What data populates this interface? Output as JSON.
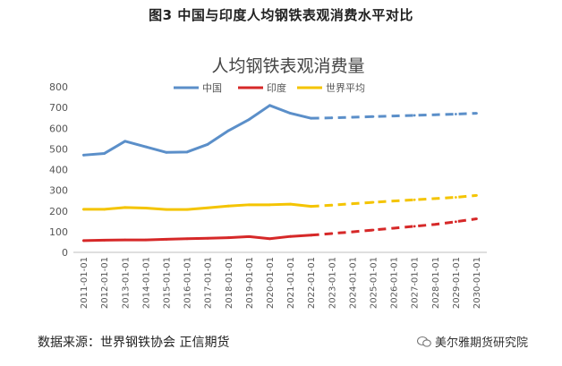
{
  "figure_title": "图3 中国与印度人均钢铁表观消费水平对比",
  "source_text": "数据来源：世界钢铁协会 正信期货",
  "watermark_text": "美尔雅期货研究院",
  "chart_data": {
    "type": "line",
    "title": "人均钢铁表观消费量",
    "ylim": [
      0,
      800
    ],
    "yticks": [
      0,
      100,
      200,
      300,
      400,
      500,
      600,
      700,
      800
    ],
    "grid": false,
    "legend_position": "top",
    "categories": [
      "2011-01-01",
      "2012-01-01",
      "2013-01-01",
      "2014-01-01",
      "2015-01-01",
      "2016-01-01",
      "2017-01-01",
      "2018-01-01",
      "2019-01-01",
      "2020-01-01",
      "2021-01-01",
      "2022-01-01",
      "2023-01-01",
      "2024-01-01",
      "2025-01-01",
      "2026-01-01",
      "2027-01-01",
      "2028-01-01",
      "2029-01-01",
      "2030-01-01"
    ],
    "last_actual_category": "2022-01-01",
    "series": [
      {
        "name": "中国",
        "color": "#5b8fc9",
        "values": [
          470,
          478,
          537,
          510,
          483,
          485,
          522,
          588,
          642,
          710,
          672,
          648,
          650,
          653,
          656,
          659,
          662,
          665,
          668,
          672
        ]
      },
      {
        "name": "印度",
        "color": "#d62828",
        "values": [
          57,
          59,
          60,
          60,
          63,
          66,
          68,
          71,
          76,
          66,
          77,
          83,
          91,
          99,
          108,
          117,
          126,
          135,
          148,
          162
        ]
      },
      {
        "name": "世界平均",
        "color": "#f4c400",
        "values": [
          208,
          208,
          217,
          214,
          207,
          207,
          215,
          224,
          230,
          230,
          233,
          222,
          228,
          235,
          242,
          248,
          254,
          260,
          266,
          275
        ]
      }
    ]
  }
}
